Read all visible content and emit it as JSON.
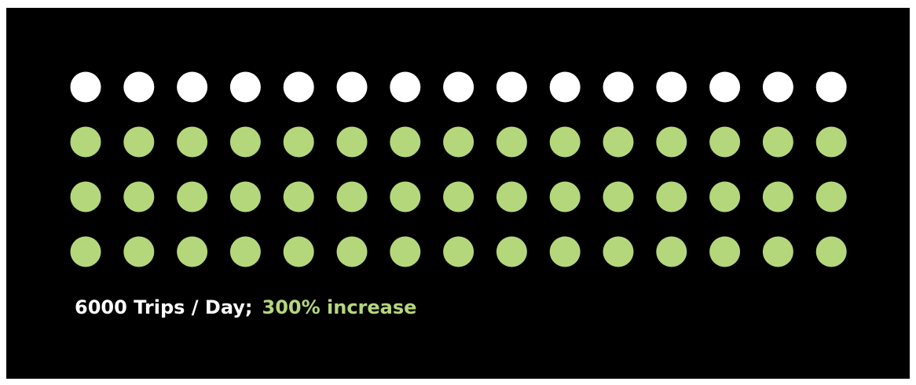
{
  "chart_data": {
    "type": "pictogram",
    "columns": 15,
    "rows": [
      {
        "count": 15,
        "color": "#ffffff"
      },
      {
        "count": 15,
        "color": "#b5d77b"
      },
      {
        "count": 15,
        "color": "#b5d77b"
      },
      {
        "count": 15,
        "color": "#b5d77b"
      }
    ]
  },
  "caption": {
    "primary": "6000 Trips / Day;",
    "secondary": "300% increase"
  },
  "colors": {
    "background": "#000000",
    "primary_text": "#ffffff",
    "accent": "#b5d77b"
  }
}
